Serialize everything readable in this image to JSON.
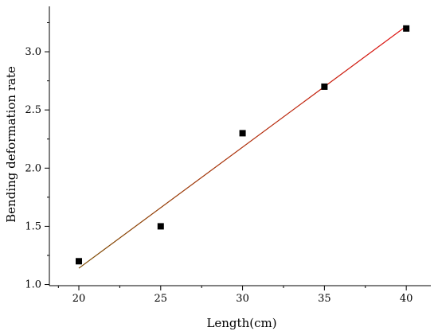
{
  "chart_data": {
    "type": "scatter",
    "title": "",
    "xlabel": "Length(cm)",
    "ylabel": "Bending deformation rate",
    "xlim": [
      18.2,
      41.5
    ],
    "ylim": [
      0.99,
      3.39
    ],
    "xticks": [
      20,
      25,
      30,
      35,
      40
    ],
    "xtick_labels": [
      "20",
      "25",
      "30",
      "35",
      "40"
    ],
    "yticks": [
      1.0,
      1.5,
      2.0,
      2.5,
      3.0
    ],
    "ytick_labels": [
      "1.0",
      "1.5",
      "2.0",
      "2.5",
      "3.0"
    ],
    "grid": false,
    "legend": "none",
    "series": [
      {
        "marker": "square",
        "color": "#000000",
        "points": [
          {
            "x": 20,
            "y": 1.2
          },
          {
            "x": 25,
            "y": 1.5
          },
          {
            "x": 30,
            "y": 2.3
          },
          {
            "x": 35,
            "y": 2.7
          },
          {
            "x": 40,
            "y": 3.2
          }
        ]
      }
    ],
    "fit_line": {
      "color_start": "#7a4a00",
      "color_end": "#e01010",
      "x": [
        20,
        40
      ],
      "y": [
        1.14,
        3.22
      ]
    }
  }
}
